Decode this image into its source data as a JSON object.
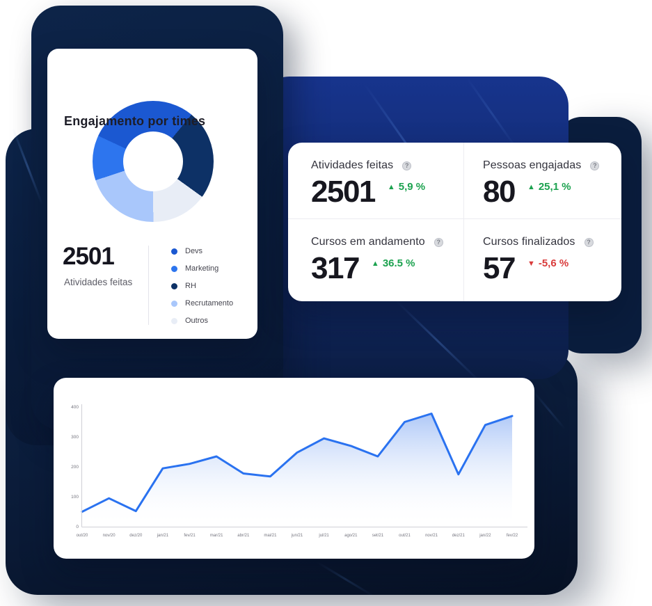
{
  "donut_card": {
    "title": "Engajamento por times",
    "total": "2501",
    "total_label": "Atividades feitas",
    "legend": [
      {
        "label": "Devs",
        "color": "#1b58d1"
      },
      {
        "label": "Marketing",
        "color": "#2d75ee"
      },
      {
        "label": "RH",
        "color": "#0d3166"
      },
      {
        "label": "Recrutamento",
        "color": "#a9c7fb"
      },
      {
        "label": "Outros",
        "color": "#e8edf6"
      }
    ]
  },
  "stats_card": {
    "help_icon_glyph": "?",
    "metrics": [
      {
        "label": "Atividades feitas",
        "value": "2501",
        "delta": "5,9 %",
        "direction": "up"
      },
      {
        "label": "Pessoas engajadas",
        "value": "80",
        "delta": "25,1 %",
        "direction": "up"
      },
      {
        "label": "Cursos em andamento",
        "value": "317",
        "delta": "36.5 %",
        "direction": "up"
      },
      {
        "label": "Cursos finalizados",
        "value": "57",
        "delta": "-5,6 %",
        "direction": "down"
      }
    ]
  },
  "colors": {
    "accent_blue": "#2a72f0",
    "delta_up_green": "#1ca24f",
    "delta_down_red": "#d93b3b",
    "axis_gray": "#cfcfd6",
    "tick_text": "#74747e"
  },
  "chart_data": [
    {
      "type": "pie",
      "title": "Engajamento por times",
      "donut": true,
      "start_angle_deg": -65,
      "segments": [
        {
          "label": "Devs",
          "color": "#1b58d1",
          "pct": 29
        },
        {
          "label": "RH",
          "color": "#0d3166",
          "pct": 24
        },
        {
          "label": "Outros",
          "color": "#e8edf6",
          "pct": 15
        },
        {
          "label": "Recrutamento",
          "color": "#a9c7fb",
          "pct": 20
        },
        {
          "label": "Marketing",
          "color": "#2d75ee",
          "pct": 12
        }
      ],
      "center_total": "2501",
      "center_total_label": "Atividades feitas",
      "legend_position": "bottom-right"
    },
    {
      "type": "area",
      "x": [
        "out/20",
        "nov/20",
        "dez/20",
        "jan/21",
        "fev/21",
        "mar/21",
        "abr/21",
        "mai/21",
        "jun/21",
        "jul/21",
        "ago/21",
        "set/21",
        "out/21",
        "nov/21",
        "dez/21",
        "jan/22",
        "fev/22"
      ],
      "values": [
        50,
        95,
        52,
        195,
        210,
        235,
        178,
        168,
        248,
        295,
        270,
        235,
        350,
        378,
        175,
        340,
        370
      ],
      "ylim": [
        0,
        400
      ],
      "yticks": [
        0,
        100,
        200,
        300,
        400
      ],
      "grid": false,
      "legend": false,
      "line_color": "#2a72f0",
      "area_fill_top": "#9abaf5",
      "area_fill_bottom": "#ffffff"
    }
  ]
}
